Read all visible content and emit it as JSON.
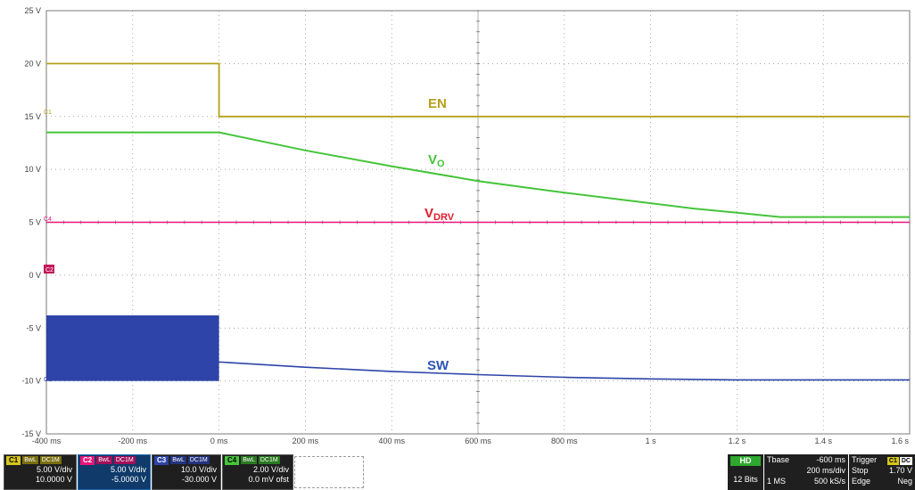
{
  "scope": {
    "y_labels": [
      "25 V",
      "20 V",
      "15 V",
      "10 V",
      "5 V",
      "0 V",
      "-5 V",
      "-10 V",
      "-15 V"
    ],
    "x_labels": [
      "-400 ms",
      "-200 ms",
      "0 ms",
      "200 ms",
      "400 ms",
      "600 ms",
      "800 ms",
      "1 s",
      "1.2 s",
      "1.4 s",
      "1.6 s"
    ],
    "trace_labels": {
      "en": {
        "main": "EN",
        "sub": ""
      },
      "vo": {
        "main": "V",
        "sub": "O"
      },
      "vdrv": {
        "main": "V",
        "sub": "DRV"
      },
      "sw": {
        "main": "SW",
        "sub": ""
      }
    },
    "marker_labels": {
      "c1": "C1",
      "c2": "C2",
      "c3": "C3",
      "c4": "C4"
    },
    "colors": {
      "en": "#b5a019",
      "vo": "#45c43a",
      "vdrv": "#e8157a",
      "sw": "#2e44a8",
      "sw_label": "#2b55b5",
      "vdrv_label": "#e01a2a",
      "grid": "#8a8a8a"
    }
  },
  "traces": {
    "x_unit": "ms",
    "y_unit": "V",
    "en": {
      "points": [
        [
          -400,
          20
        ],
        [
          0,
          20
        ],
        [
          0,
          15
        ],
        [
          1600,
          15
        ]
      ]
    },
    "vo": {
      "points": [
        [
          -400,
          13.5
        ],
        [
          0,
          13.5
        ],
        [
          200,
          11.8
        ],
        [
          400,
          10.3
        ],
        [
          600,
          8.9
        ],
        [
          800,
          7.8
        ],
        [
          1000,
          6.8
        ],
        [
          1100,
          6.3
        ],
        [
          1200,
          5.9
        ],
        [
          1300,
          5.5
        ],
        [
          1600,
          5.5
        ]
      ]
    },
    "vdrv": {
      "points": [
        [
          -400,
          5
        ],
        [
          1600,
          5
        ]
      ]
    },
    "sw": {
      "burst": {
        "x_start": -400,
        "x_end": 0,
        "y_high": -3.8,
        "y_low": -10
      },
      "points": [
        [
          0,
          -8.2
        ],
        [
          200,
          -8.7
        ],
        [
          400,
          -9.1
        ],
        [
          600,
          -9.4
        ],
        [
          800,
          -9.65
        ],
        [
          1000,
          -9.8
        ],
        [
          1200,
          -9.9
        ],
        [
          1600,
          -9.9
        ]
      ]
    }
  },
  "channels": [
    {
      "id": "C1",
      "color": "#d6c51e",
      "bw": "BwL",
      "coupling": "DC1M",
      "vdiv": "5.00 V/div",
      "offset": "10.0000 V"
    },
    {
      "id": "C2",
      "color": "#e8157a",
      "bw": "BwL",
      "coupling": "DC1M",
      "vdiv": "5.00 V/div",
      "offset": "-5.0000 V"
    },
    {
      "id": "C3",
      "color": "#2e44a8",
      "bw": "BwL",
      "coupling": "DC1M",
      "vdiv": "10.0 V/div",
      "offset": "-30.000 V"
    },
    {
      "id": "C4",
      "color": "#45c43a",
      "bw": "BwL",
      "coupling": "DC1M",
      "vdiv": "2.00 V/div",
      "offset": "0.0 mV ofst"
    }
  ],
  "acquisition": {
    "hd": "HD",
    "bits": "12 Bits"
  },
  "timebase": {
    "label": "Tbase",
    "value": "-600 ms",
    "tdiv": "200 ms/div",
    "points": "1 MS",
    "rate": "500 kS/s"
  },
  "trigger": {
    "label": "Trigger",
    "ch": "C1",
    "coupling": "DC",
    "mode": "Stop",
    "level": "1.70 V",
    "type": "Edge",
    "slope": "Neg"
  }
}
